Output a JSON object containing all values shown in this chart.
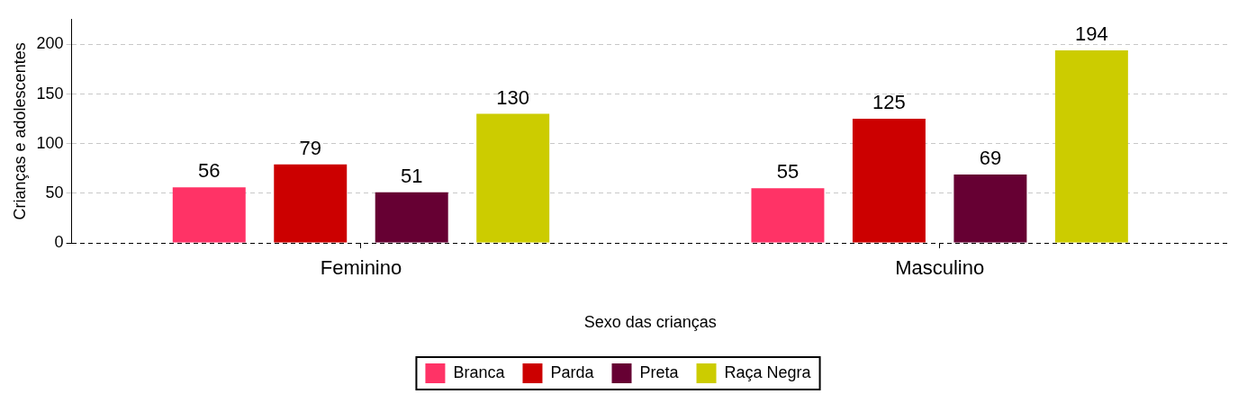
{
  "chart_data": {
    "type": "bar",
    "xlabel": "Sexo das crianças",
    "ylabel": "Crianças e adolescentes",
    "categories": [
      "Feminino",
      "Masculino"
    ],
    "series": [
      {
        "name": "Branca",
        "color": "#ff3366",
        "values": [
          56,
          55
        ]
      },
      {
        "name": "Parda",
        "color": "#cc0000",
        "values": [
          79,
          125
        ]
      },
      {
        "name": "Preta",
        "color": "#660033",
        "values": [
          51,
          69
        ]
      },
      {
        "name": "Raça Negra",
        "color": "#cccc00",
        "values": [
          130,
          194
        ]
      }
    ],
    "ylim": [
      0,
      225
    ],
    "yticks": [
      0,
      50,
      100,
      150,
      200
    ],
    "grid": "y",
    "legend": "bottom",
    "data_labels": true
  }
}
